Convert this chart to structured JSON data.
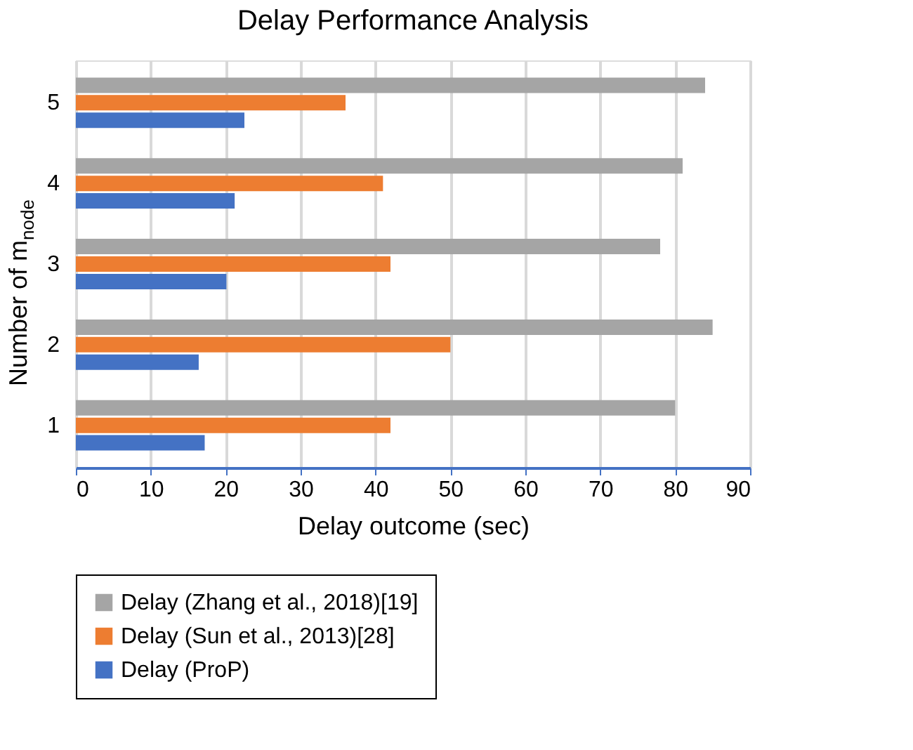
{
  "chart_data": {
    "type": "bar",
    "orientation": "horizontal",
    "title": "Delay Performance Analysis",
    "xlabel": "Delay outcome (sec)",
    "ylabel": "Number of m$_{node}$",
    "categories": [
      "5",
      "4",
      "3",
      "2",
      "1"
    ],
    "series": [
      {
        "name": "Delay (Zhang et al., 2018)[19]",
        "color": "#a5a5a5",
        "values": [
          84,
          81,
          78,
          85,
          80
        ]
      },
      {
        "name": "Delay (Sun et al., 2013)[28]",
        "color": "#ed7d31",
        "values": [
          36,
          41,
          42,
          50,
          42
        ]
      },
      {
        "name": "Delay (ProP)",
        "color": "#4472c4",
        "values": [
          22.5,
          21.2,
          20.1,
          16.4,
          17.2
        ]
      }
    ],
    "xlim": [
      0,
      90
    ],
    "xticks": [
      0,
      10,
      20,
      30,
      40,
      50,
      60,
      70,
      80,
      90
    ],
    "grid": "x",
    "legend": "bottom"
  }
}
